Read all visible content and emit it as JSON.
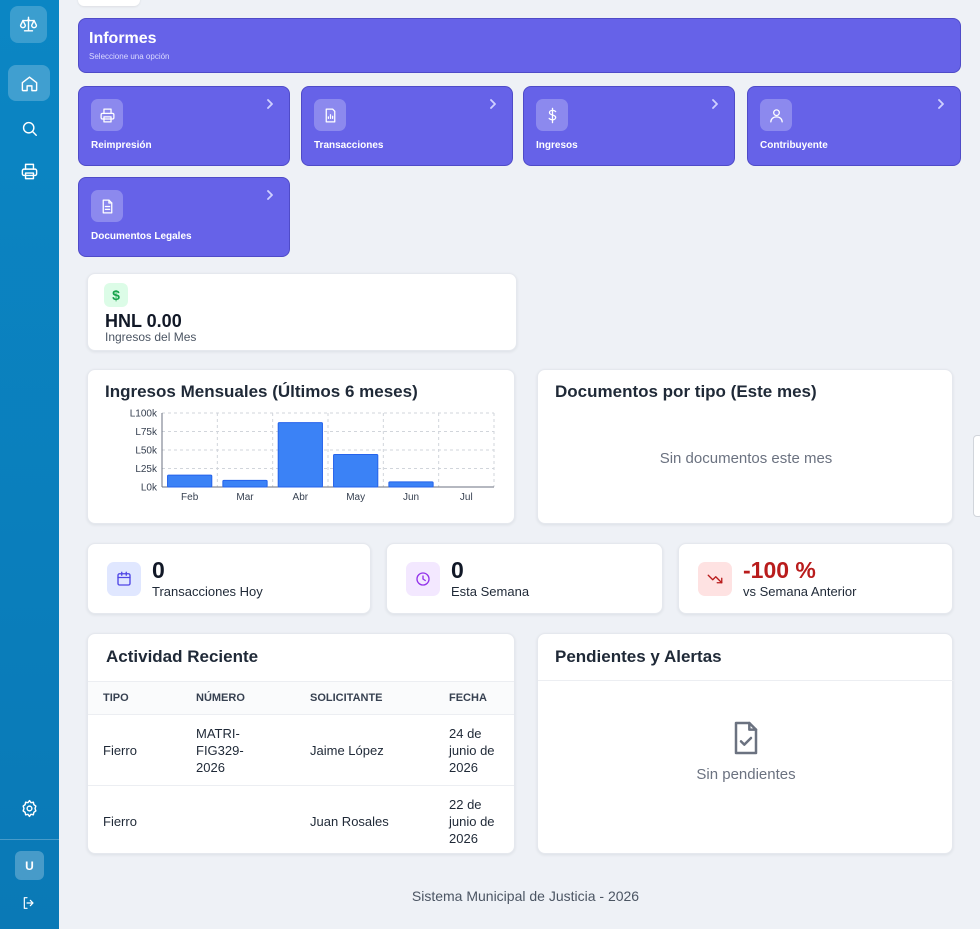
{
  "informes": {
    "title": "Informes",
    "subtitle": "Seleccione una opción"
  },
  "reports": [
    {
      "label": "Reimpresión",
      "icon": "printer-icon"
    },
    {
      "label": "Transacciones",
      "icon": "receipt-icon"
    },
    {
      "label": "Ingresos",
      "icon": "dollar-icon"
    },
    {
      "label": "Contribuyente",
      "icon": "user-icon"
    },
    {
      "label": "Documentos Legales",
      "icon": "document-icon"
    }
  ],
  "income_card": {
    "icon_symbol": "$",
    "value": "HNL 0.00",
    "label": "Ingresos del Mes"
  },
  "monthly_chart": {
    "title": "Ingresos Mensuales (Últimos 6 meses)"
  },
  "chart_data": {
    "type": "bar",
    "title": "Ingresos Mensuales (Últimos 6 meses)",
    "categories": [
      "Feb",
      "Mar",
      "Abr",
      "May",
      "Jun",
      "Jul"
    ],
    "values": [
      16000,
      9000,
      87000,
      44000,
      7000,
      0
    ],
    "yticks": [
      "L0k",
      "L25k",
      "L50k",
      "L75k",
      "L100k"
    ],
    "ylim": [
      0,
      100000
    ],
    "grid": true,
    "bar_color": "#3b82f6"
  },
  "docs_by_type": {
    "title": "Documentos por tipo (Este mes)",
    "empty": "Sin documentos este mes"
  },
  "stats": [
    {
      "value": "0",
      "label": "Transacciones Hoy",
      "icon": "calendar-icon",
      "color": "#111827"
    },
    {
      "value": "0",
      "label": "Esta Semana",
      "icon": "clock-icon",
      "color": "#111827"
    },
    {
      "value": "-100 %",
      "label": "vs Semana Anterior",
      "icon": "trending-down-icon",
      "color": "#b91c1c"
    }
  ],
  "activity": {
    "title": "Actividad Reciente",
    "columns": [
      "TIPO",
      "NÚMERO",
      "SOLICITANTE",
      "FECHA"
    ],
    "rows": [
      {
        "tipo": "Fierro",
        "numero_lines": [
          "MATRI-",
          "FIG329-",
          "2026"
        ],
        "solicitante": "Jaime López",
        "fecha_lines": [
          "24 de",
          "junio de",
          "2026"
        ]
      },
      {
        "tipo": "Fierro",
        "numero_lines": [],
        "solicitante": "Juan Rosales",
        "fecha_lines": [
          "22 de",
          "junio de",
          "2026"
        ]
      }
    ]
  },
  "alerts": {
    "title": "Pendientes y Alertas",
    "empty": "Sin pendientes"
  },
  "sidebar": {
    "avatar_initial": "U"
  },
  "footer": {
    "text": "Sistema Municipal de Justicia - 2026"
  }
}
